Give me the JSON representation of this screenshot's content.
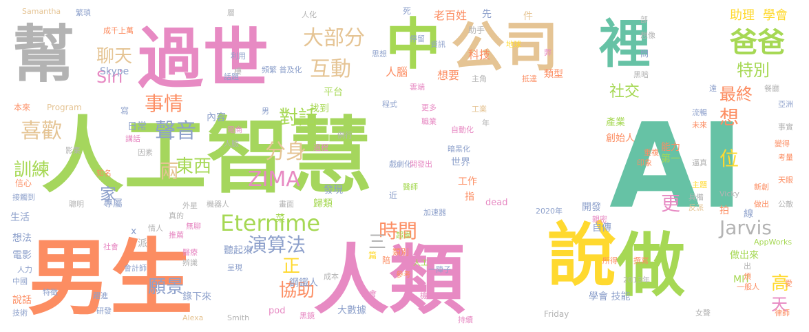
{
  "cloud": {
    "words": [
      {
        "text": "人工智慧",
        "color": "#a5d65d",
        "size": 120
      },
      {
        "text": "AI",
        "color": "#66c2a5",
        "size": 170
      },
      {
        "text": "男生",
        "color": "#fc8d62",
        "size": 120
      },
      {
        "text": "人類",
        "color": "#e78ac3",
        "size": 110
      },
      {
        "text": "說",
        "color": "#ffd92f",
        "size": 100
      },
      {
        "text": "做",
        "color": "#a6d854",
        "size": 100
      },
      {
        "text": "過世",
        "color": "#e78ac3",
        "size": 95
      },
      {
        "text": "中",
        "color": "#a6d854",
        "size": 80
      },
      {
        "text": "公司",
        "color": "#e5c494",
        "size": 78
      },
      {
        "text": "裡",
        "color": "#66c2a5",
        "size": 75
      },
      {
        "text": "幫",
        "color": "#b3b3b3",
        "size": 90
      },
      {
        "text": "爸爸",
        "color": "#a6d854",
        "size": 40
      },
      {
        "text": "大部分",
        "color": "#e5c494",
        "size": 30
      },
      {
        "text": "互動",
        "color": "#e5c494",
        "size": 30
      },
      {
        "text": "聊天",
        "color": "#e5c494",
        "size": 26
      },
      {
        "text": "事情",
        "color": "#fc8d62",
        "size": 28
      },
      {
        "text": "喜歡",
        "color": "#e5c494",
        "size": 30
      },
      {
        "text": "聲音",
        "color": "#8da0cb",
        "size": 30
      },
      {
        "text": "對話",
        "color": "#a6d854",
        "size": 28
      },
      {
        "text": "分身",
        "color": "#e5c494",
        "size": 30
      },
      {
        "text": "東西",
        "color": "#a6d854",
        "size": 26
      },
      {
        "text": "兩",
        "color": "#e5c494",
        "size": 28
      },
      {
        "text": "訓練",
        "color": "#a6d854",
        "size": 26
      },
      {
        "text": "ZIMA",
        "color": "#e78ac3",
        "size": 30
      },
      {
        "text": "Eternime",
        "color": "#a6d854",
        "size": 32
      },
      {
        "text": "時間",
        "color": "#fc8d62",
        "size": 28
      },
      {
        "text": "演算法",
        "color": "#8da0cb",
        "size": 28
      },
      {
        "text": "Jarvis",
        "color": "#b3b3b3",
        "size": 28
      },
      {
        "text": "願景",
        "color": "#8da0cb",
        "size": 26
      },
      {
        "text": "協助",
        "color": "#fc8d62",
        "size": 26
      },
      {
        "text": "正",
        "color": "#ffd92f",
        "size": 26
      },
      {
        "text": "三",
        "color": "#b3b3b3",
        "size": 26
      },
      {
        "text": "最終",
        "color": "#fc8d62",
        "size": 24
      },
      {
        "text": "特別",
        "color": "#a6d854",
        "size": 24
      },
      {
        "text": "社交",
        "color": "#a6d854",
        "size": 22
      },
      {
        "text": "想",
        "color": "#fc8d62",
        "size": 28
      },
      {
        "text": "位",
        "color": "#ffd92f",
        "size": 28
      },
      {
        "text": "更",
        "color": "#e78ac3",
        "size": 28
      },
      {
        "text": "高",
        "color": "#ffd92f",
        "size": 26
      },
      {
        "text": "天",
        "color": "#e78ac3",
        "size": 24
      },
      {
        "text": "Siri",
        "color": "#e78ac3",
        "size": 24
      },
      {
        "text": "家",
        "color": "#8da0cb",
        "size": 24
      },
      {
        "text": "助理",
        "color": "#ffd92f",
        "size": 18
      },
      {
        "text": "學會",
        "color": "#ffd92f",
        "size": 18
      },
      {
        "text": "老百姓",
        "color": "#fc8d62",
        "size": 16
      },
      {
        "text": "科技",
        "color": "#fc8d62",
        "size": 16
      },
      {
        "text": "想要",
        "color": "#fc8d62",
        "size": 16
      },
      {
        "text": "人腦",
        "color": "#fc8d62",
        "size": 16
      },
      {
        "text": "類型",
        "color": "#fc8d62",
        "size": 14
      },
      {
        "text": "平台",
        "color": "#a6d854",
        "size": 14
      },
      {
        "text": "找到",
        "color": "#a6d854",
        "size": 14
      },
      {
        "text": "Skype",
        "color": "#8da0cb",
        "size": 14
      },
      {
        "text": "日常",
        "color": "#8da0cb",
        "size": 14
      },
      {
        "text": "內容",
        "color": "#8da0cb",
        "size": 14
      },
      {
        "text": "產業",
        "color": "#a6d854",
        "size": 14
      },
      {
        "text": "創始人",
        "color": "#fc8d62",
        "size": 14
      },
      {
        "text": "能力",
        "color": "#fc8d62",
        "size": 14
      },
      {
        "text": "第一",
        "color": "#a6d854",
        "size": 14
      },
      {
        "text": "世界",
        "color": "#8da0cb",
        "size": 14
      },
      {
        "text": "發現",
        "color": "#8da0cb",
        "size": 14
      },
      {
        "text": "工作",
        "color": "#fc8d62",
        "size": 14
      },
      {
        "text": "指",
        "color": "#fc8d62",
        "size": 14
      },
      {
        "text": "歸類",
        "color": "#a6d854",
        "size": 14
      },
      {
        "text": "專屬",
        "color": "#8da0cb",
        "size": 14
      },
      {
        "text": "開發",
        "color": "#8da0cb",
        "size": 14
      },
      {
        "text": "自傳",
        "color": "#8da0cb",
        "size": 14
      },
      {
        "text": "拍",
        "color": "#fc8d62",
        "size": 14
      },
      {
        "text": "做出來",
        "color": "#a6d854",
        "size": 14
      },
      {
        "text": "MIT",
        "color": "#a6d854",
        "size": 14
      },
      {
        "text": "學會 技能",
        "color": "#8da0cb",
        "size": 14
      },
      {
        "text": "大數據",
        "color": "#8da0cb",
        "size": 14
      },
      {
        "text": "錄下來",
        "color": "#8da0cb",
        "size": 14
      },
      {
        "text": "聽起來",
        "color": "#8da0cb",
        "size": 14
      },
      {
        "text": "鋼鐵人",
        "color": "#8da0cb",
        "size": 14
      },
      {
        "text": "類別",
        "color": "#fc8d62",
        "size": 12
      },
      {
        "text": "陪",
        "color": "#fc8d62",
        "size": 12
      },
      {
        "text": "生活",
        "color": "#8da0cb",
        "size": 14
      },
      {
        "text": "想法",
        "color": "#8da0cb",
        "size": 14
      },
      {
        "text": "電影",
        "color": "#8da0cb",
        "size": 14
      },
      {
        "text": "說話",
        "color": "#fc8d62",
        "size": 14
      },
      {
        "text": "信心",
        "color": "#fc8d62",
        "size": 12
      },
      {
        "text": "Program",
        "color": "#e5c494",
        "size": 12
      },
      {
        "text": "本來",
        "color": "#fc8d62",
        "size": 12
      },
      {
        "text": "Samantha",
        "color": "#e5c494",
        "size": 11
      },
      {
        "text": "繁瑣",
        "color": "#8da0cb",
        "size": 11
      },
      {
        "text": "dead",
        "color": "#e78ac3",
        "size": 13
      },
      {
        "text": "pod",
        "color": "#e78ac3",
        "size": 13
      },
      {
        "text": "Friday",
        "color": "#b3b3b3",
        "size": 12
      },
      {
        "text": "Alexa",
        "color": "#e5c494",
        "size": 11
      },
      {
        "text": "Smith",
        "color": "#b3b3b3",
        "size": 11
      },
      {
        "text": "Vicky",
        "color": "#b3b3b3",
        "size": 11
      },
      {
        "text": "AppWorks",
        "color": "#a6d854",
        "size": 11
      },
      {
        "text": "2020年",
        "color": "#8da0cb",
        "size": 11
      },
      {
        "text": "2013年",
        "color": "#b3b3b3",
        "size": 11
      },
      {
        "text": "資訊",
        "color": "#8da0cb",
        "size": 11
      },
      {
        "text": "停留",
        "color": "#8da0cb",
        "size": 11
      },
      {
        "text": "地球",
        "color": "#ffd92f",
        "size": 11
      },
      {
        "text": "主角",
        "color": "#b3b3b3",
        "size": 11
      },
      {
        "text": "雲端",
        "color": "#e78ac3",
        "size": 11
      },
      {
        "text": "抵達",
        "color": "#fc8d62",
        "size": 11
      },
      {
        "text": "思想",
        "color": "#8da0cb",
        "size": 11
      },
      {
        "text": "頻繁 普及化",
        "color": "#8da0cb",
        "size": 11
      },
      {
        "text": "話題",
        "color": "#8da0cb",
        "size": 11
      },
      {
        "text": "利用",
        "color": "#8da0cb",
        "size": 11
      },
      {
        "text": "程式",
        "color": "#8da0cb",
        "size": 11
      },
      {
        "text": "更多",
        "color": "#e78ac3",
        "size": 11
      },
      {
        "text": "職業",
        "color": "#e78ac3",
        "size": 11
      },
      {
        "text": "自動化",
        "color": "#e78ac3",
        "size": 11
      },
      {
        "text": "暗黑化",
        "color": "#8da0cb",
        "size": 11
      },
      {
        "text": "戲劇化",
        "color": "#8da0cb",
        "size": 11
      },
      {
        "text": "開發出",
        "color": "#e78ac3",
        "size": 11
      },
      {
        "text": "醫師",
        "color": "#a6d854",
        "size": 11
      },
      {
        "text": "加速器",
        "color": "#8da0cb",
        "size": 11
      },
      {
        "text": "機器人",
        "color": "#b3b3b3",
        "size": 11
      },
      {
        "text": "畫面",
        "color": "#b3b3b3",
        "size": 11
      },
      {
        "text": "菜",
        "color": "#a6d854",
        "size": 14
      },
      {
        "text": "外星",
        "color": "#b3b3b3",
        "size": 11
      },
      {
        "text": "無聊",
        "color": "#e78ac3",
        "size": 11
      },
      {
        "text": "醫療",
        "color": "#e78ac3",
        "size": 11
      },
      {
        "text": "辨識",
        "color": "#b3b3b3",
        "size": 11
      },
      {
        "text": "呈現",
        "color": "#8da0cb",
        "size": 11
      },
      {
        "text": "超過",
        "color": "#a6d854",
        "size": 11
      },
      {
        "text": "人工",
        "color": "#a6d854",
        "size": 11
      },
      {
        "text": "參考",
        "color": "#fc8d62",
        "size": 11
      },
      {
        "text": "一陣子",
        "color": "#8da0cb",
        "size": 11
      },
      {
        "text": "成本",
        "color": "#b3b3b3",
        "size": 11
      },
      {
        "text": "機會",
        "color": "#e78ac3",
        "size": 11
      },
      {
        "text": "機械",
        "color": "#e78ac3",
        "size": 11
      },
      {
        "text": "持續",
        "color": "#e78ac3",
        "size": 11
      },
      {
        "text": "黑鏡",
        "color": "#e78ac3",
        "size": 11
      },
      {
        "text": "躍進",
        "color": "#8da0cb",
        "size": 11
      },
      {
        "text": "研發",
        "color": "#8da0cb",
        "size": 11
      },
      {
        "text": "技術",
        "color": "#8da0cb",
        "size": 11
      },
      {
        "text": "中國",
        "color": "#8da0cb",
        "size": 11
      },
      {
        "text": "特徵",
        "color": "#8da0cb",
        "size": 11
      },
      {
        "text": "會計師",
        "color": "#8da0cb",
        "size": 11
      },
      {
        "text": "人力",
        "color": "#8da0cb",
        "size": 11
      },
      {
        "text": "社會",
        "color": "#e78ac3",
        "size": 11
      },
      {
        "text": "情人",
        "color": "#b3b3b3",
        "size": 11
      },
      {
        "text": "派",
        "color": "#b3b3b3",
        "size": 14
      },
      {
        "text": "x",
        "color": "#8da0cb",
        "size": 14
      },
      {
        "text": "聰明",
        "color": "#b3b3b3",
        "size": 11
      },
      {
        "text": "接觸到",
        "color": "#8da0cb",
        "size": 11
      },
      {
        "text": "知名",
        "color": "#fc8d62",
        "size": 11
      },
      {
        "text": "影集",
        "color": "#b3b3b3",
        "size": 11
      },
      {
        "text": "因素",
        "color": "#b3b3b3",
        "size": 11
      },
      {
        "text": "講話",
        "color": "#e78ac3",
        "size": 11
      },
      {
        "text": "人臉",
        "color": "#b3b3b3",
        "size": 11
      },
      {
        "text": "電商",
        "color": "#e78ac3",
        "size": 11
      },
      {
        "text": "過程",
        "color": "#e78ac3",
        "size": 11
      },
      {
        "text": "例行",
        "color": "#b3b3b3",
        "size": 11
      },
      {
        "text": "寫",
        "color": "#8da0cb",
        "size": 12
      },
      {
        "text": "男",
        "color": "#8da0cb",
        "size": 11
      },
      {
        "text": "近",
        "color": "#8da0cb",
        "size": 12
      },
      {
        "text": "篇",
        "color": "#ffd92f",
        "size": 12
      },
      {
        "text": "工業",
        "color": "#e5c494",
        "size": 11
      },
      {
        "text": "年",
        "color": "#b3b3b3",
        "size": 11
      },
      {
        "text": "重複",
        "color": "#fc8d62",
        "size": 11
      },
      {
        "text": "印象",
        "color": "#fc8d62",
        "size": 11
      },
      {
        "text": "逼真",
        "color": "#b3b3b3",
        "size": 11
      },
      {
        "text": "主題",
        "color": "#ffd92f",
        "size": 11
      },
      {
        "text": "具備",
        "color": "#b3b3b3",
        "size": 11
      },
      {
        "text": "反派",
        "color": "#e5c494",
        "size": 11
      },
      {
        "text": "親密",
        "color": "#e78ac3",
        "size": 11
      },
      {
        "text": "所得",
        "color": "#fc8d62",
        "size": 11
      },
      {
        "text": "撰寫",
        "color": "#fc8d62",
        "size": 11
      },
      {
        "text": "一般人",
        "color": "#fc8d62",
        "size": 11
      },
      {
        "text": "女聲",
        "color": "#b3b3b3",
        "size": 11
      },
      {
        "text": "律師",
        "color": "#fc8d62",
        "size": 11
      },
      {
        "text": "愛",
        "color": "#fc8d62",
        "size": 11
      },
      {
        "text": "煩",
        "color": "#fc8d62",
        "size": 11
      },
      {
        "text": "出",
        "color": "#b3b3b3",
        "size": 11
      },
      {
        "text": "公敵",
        "color": "#b3b3b3",
        "size": 11
      },
      {
        "text": "做出",
        "color": "#fc8d62",
        "size": 11
      },
      {
        "text": "新創",
        "color": "#fc8d62",
        "size": 11
      },
      {
        "text": "天眼",
        "color": "#fc8d62",
        "size": 11
      },
      {
        "text": "考量",
        "color": "#fc8d62",
        "size": 11
      },
      {
        "text": "變得",
        "color": "#fc8d62",
        "size": 11
      },
      {
        "text": "事實",
        "color": "#b3b3b3",
        "size": 11
      },
      {
        "text": "亞洲",
        "color": "#8da0cb",
        "size": 11
      },
      {
        "text": "遠",
        "color": "#8da0cb",
        "size": 11
      },
      {
        "text": "流暢",
        "color": "#8da0cb",
        "size": 11
      },
      {
        "text": "未來",
        "color": "#fc8d62",
        "size": 11
      },
      {
        "text": "黑暗",
        "color": "#b3b3b3",
        "size": 11
      },
      {
        "text": "問",
        "color": "#8da0cb",
        "size": 12
      },
      {
        "text": "想像",
        "color": "#b3b3b3",
        "size": 11
      },
      {
        "text": "部",
        "color": "#b3b3b3",
        "size": 11
      },
      {
        "text": "餐廳",
        "color": "#b3b3b3",
        "size": 11
      },
      {
        "text": "弊",
        "color": "#e78ac3",
        "size": 11
      },
      {
        "text": "件",
        "color": "#e5c494",
        "size": 14
      },
      {
        "text": "先",
        "color": "#8da0cb",
        "size": 14
      },
      {
        "text": "助手",
        "color": "#b3b3b3",
        "size": 12
      },
      {
        "text": "死",
        "color": "#8da0cb",
        "size": 12
      },
      {
        "text": "人化",
        "color": "#b3b3b3",
        "size": 11
      },
      {
        "text": "層",
        "color": "#b3b3b3",
        "size": 11
      },
      {
        "text": "成千上萬",
        "color": "#fc8d62",
        "size": 11
      },
      {
        "text": "樓",
        "color": "#b3b3b3",
        "size": 11
      },
      {
        "text": "線",
        "color": "#8da0cb",
        "size": 14
      },
      {
        "text": "真的",
        "color": "#b3b3b3",
        "size": 11
      },
      {
        "text": "推薦",
        "color": "#e78ac3",
        "size": 11
      }
    ]
  }
}
